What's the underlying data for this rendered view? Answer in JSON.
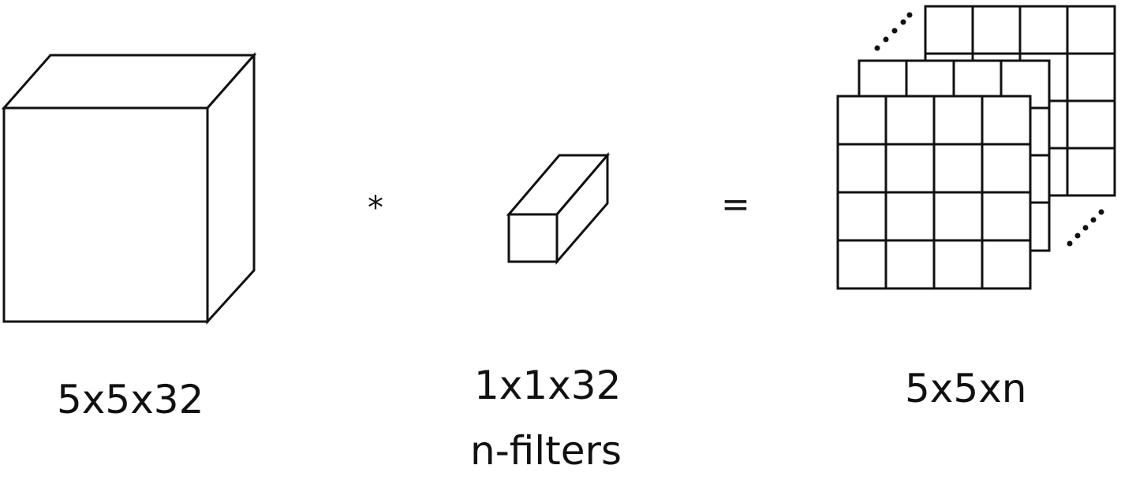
{
  "labels": {
    "input_shape": "5x5x32",
    "filter_shape": "1x1x32",
    "filter_count": "n-filters",
    "output_shape": "5x5xn"
  },
  "operators": {
    "convolve": "*",
    "equals": "="
  },
  "colors": {
    "stroke": "#111111",
    "background": "#ffffff"
  }
}
